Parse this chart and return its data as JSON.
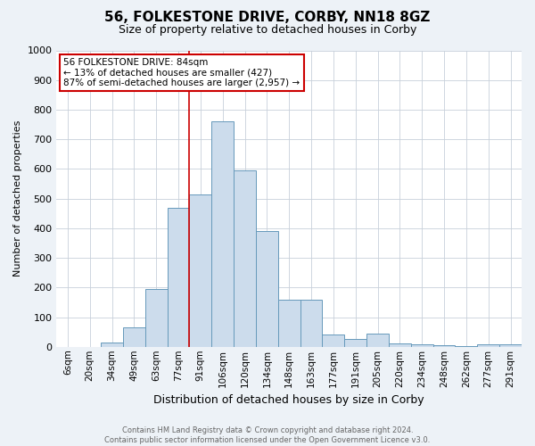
{
  "title": "56, FOLKESTONE DRIVE, CORBY, NN18 8GZ",
  "subtitle": "Size of property relative to detached houses in Corby",
  "xlabel": "Distribution of detached houses by size in Corby",
  "ylabel": "Number of detached properties",
  "categories": [
    "6sqm",
    "20sqm",
    "34sqm",
    "49sqm",
    "63sqm",
    "77sqm",
    "91sqm",
    "106sqm",
    "120sqm",
    "134sqm",
    "148sqm",
    "163sqm",
    "177sqm",
    "191sqm",
    "205sqm",
    "220sqm",
    "234sqm",
    "248sqm",
    "262sqm",
    "277sqm",
    "291sqm"
  ],
  "values": [
    0,
    0,
    13,
    65,
    195,
    470,
    515,
    760,
    595,
    390,
    160,
    160,
    42,
    27,
    45,
    10,
    7,
    5,
    3,
    8,
    8
  ],
  "bar_color": "#ccdcec",
  "bar_edge_color": "#6699bb",
  "vline_color": "#cc0000",
  "ylim": [
    0,
    1000
  ],
  "yticks": [
    0,
    100,
    200,
    300,
    400,
    500,
    600,
    700,
    800,
    900,
    1000
  ],
  "annotation_text": "56 FOLKESTONE DRIVE: 84sqm\n← 13% of detached houses are smaller (427)\n87% of semi-detached houses are larger (2,957) →",
  "annotation_box_color": "#ffffff",
  "annotation_box_edge": "#cc0000",
  "footnote": "Contains HM Land Registry data © Crown copyright and database right 2024.\nContains public sector information licensed under the Open Government Licence v3.0.",
  "bg_color": "#edf2f7",
  "plot_bg_color": "#ffffff",
  "grid_color": "#c8d0da",
  "title_fontsize": 11,
  "subtitle_fontsize": 9
}
